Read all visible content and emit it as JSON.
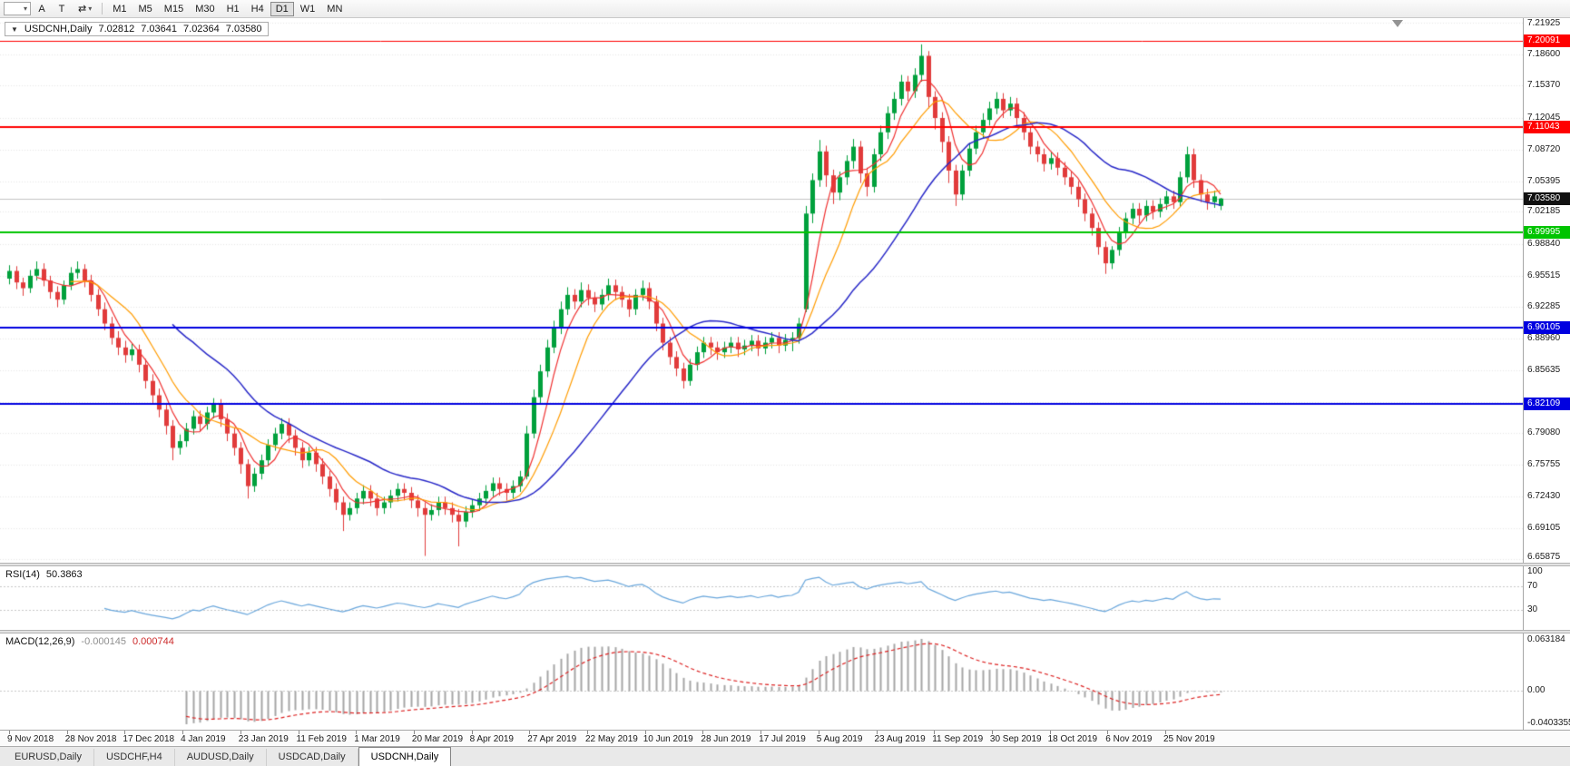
{
  "toolbar": {
    "icons": {
      "chart_selector": "▾",
      "arrows": "⇄",
      "arrows_caret": "▾"
    },
    "buttons": [
      {
        "label": "A"
      },
      {
        "label": "T"
      }
    ],
    "timeframes": [
      "M1",
      "M5",
      "M15",
      "M30",
      "H1",
      "H4",
      "D1",
      "W1",
      "MN"
    ],
    "active_timeframe": "D1"
  },
  "chart_header": {
    "collapse_icon": "▼",
    "symbol": "USDCNH,Daily",
    "open": "7.02812",
    "high": "7.03641",
    "low": "7.02364",
    "close": "7.03580"
  },
  "tabs": [
    {
      "label": "EURUSD,Daily",
      "active": false
    },
    {
      "label": "USDCHF,H4",
      "active": false
    },
    {
      "label": "AUDUSD,Daily",
      "active": false
    },
    {
      "label": "USDCAD,Daily",
      "active": false
    },
    {
      "label": "USDCNH,Daily",
      "active": true
    }
  ],
  "chart_data": {
    "type": "candlestick",
    "symbol": "USDCNH",
    "timeframe": "Daily",
    "ylim": [
      6.6549,
      7.2244
    ],
    "up_color": "#00a03c",
    "down_color": "#e13b3b",
    "grid_color": "#e7e7e7",
    "y_ticks": [
      7.21925,
      7.186,
      7.1537,
      7.12045,
      7.0872,
      7.05395,
      7.02185,
      6.9884,
      6.95515,
      6.92285,
      6.8896,
      6.85635,
      6.8231,
      6.7908,
      6.75755,
      6.7243,
      6.69105,
      6.65875
    ],
    "y_tick_labels": [
      "7.21925",
      "7.18600",
      "7.15370",
      "7.12045",
      "7.08720",
      "7.05395",
      "7.02185",
      "6.98840",
      "6.95515",
      "6.92285",
      "6.88960",
      "6.85635",
      "6.82310",
      "6.79080",
      "6.75755",
      "6.72430",
      "6.69105",
      "6.65875"
    ],
    "x_labels": [
      "9 Nov 2018",
      "28 Nov 2018",
      "17 Dec 2018",
      "4 Jan 2019",
      "23 Jan 2019",
      "11 Feb 2019",
      "1 Mar 2019",
      "20 Mar 2019",
      "8 Apr 2019",
      "27 Apr 2019",
      "22 May 2019",
      "10 Jun 2019",
      "28 Jun 2019",
      "17 Jul 2019",
      "5 Aug 2019",
      "23 Aug 2019",
      "11 Sep 2019",
      "30 Sep 2019",
      "18 Oct 2019",
      "6 Nov 2019",
      "25 Nov 2019"
    ],
    "hlines": [
      {
        "price": 7.20091,
        "label": "7.20091",
        "color": "#ff0000",
        "width": 1
      },
      {
        "price": 7.11043,
        "label": "7.11043",
        "color": "#ff0000",
        "width": 2
      },
      {
        "price": 6.99995,
        "label": "6.99995",
        "color": "#00c400",
        "width": 2
      },
      {
        "price": 6.90105,
        "label": "6.90105",
        "color": "#0000e0",
        "width": 2
      },
      {
        "price": 6.82109,
        "label": "6.82109",
        "color": "#0000e0",
        "width": 2
      }
    ],
    "current_price": {
      "price": 7.0358,
      "label": "7.03580",
      "color": "#111111"
    },
    "overlays": [
      {
        "name": "ma-fast",
        "type": "sma",
        "period": 5,
        "color": "#f03030",
        "width": 1.2
      },
      {
        "name": "ma-mid",
        "type": "sma",
        "period": 10,
        "color": "#ff9c00",
        "width": 1.2
      },
      {
        "name": "ma-slow",
        "type": "sma",
        "period": 25,
        "color": "#2828c8",
        "width": 1.5
      }
    ],
    "indicators": [
      {
        "name": "RSI",
        "label": "RSI(14)",
        "value": "50.3863",
        "period": 14,
        "color": "#6aa7dc",
        "levels": [
          70,
          30
        ],
        "axis_labels": [
          "100",
          "70",
          "30"
        ],
        "axis_values": [
          100,
          70,
          30
        ]
      },
      {
        "name": "MACD",
        "label": "MACD(12,26,9)",
        "values": [
          "-0.000145",
          "0.000744"
        ],
        "fast": 12,
        "slow": 26,
        "signal": 9,
        "hist_color": "#a6a6a6",
        "signal_color": "#dd2222",
        "axis_labels": [
          "0.063184",
          "0.00",
          "-0.0403355"
        ]
      }
    ],
    "candles": [
      [
        6.952,
        6.966,
        6.946,
        6.96
      ],
      [
        6.96,
        6.965,
        6.941,
        6.948
      ],
      [
        6.948,
        6.953,
        6.934,
        6.942
      ],
      [
        6.942,
        6.961,
        6.937,
        6.955
      ],
      [
        6.955,
        6.97,
        6.95,
        6.962
      ],
      [
        6.962,
        6.968,
        6.944,
        6.95
      ],
      [
        6.95,
        6.955,
        6.931,
        6.938
      ],
      [
        6.938,
        6.944,
        6.922,
        6.93
      ],
      [
        6.93,
        6.95,
        6.925,
        6.945
      ],
      [
        6.945,
        6.964,
        6.94,
        6.958
      ],
      [
        6.958,
        6.97,
        6.952,
        6.962
      ],
      [
        6.962,
        6.967,
        6.943,
        6.95
      ],
      [
        6.95,
        6.956,
        6.928,
        6.935
      ],
      [
        6.935,
        6.941,
        6.913,
        6.92
      ],
      [
        6.92,
        6.927,
        6.898,
        6.905
      ],
      [
        6.905,
        6.912,
        6.883,
        6.89
      ],
      [
        6.89,
        6.897,
        6.872,
        6.88
      ],
      [
        6.88,
        6.887,
        6.864,
        6.872
      ],
      [
        6.872,
        6.884,
        6.866,
        6.878
      ],
      [
        6.878,
        6.883,
        6.854,
        6.862
      ],
      [
        6.862,
        6.868,
        6.837,
        6.845
      ],
      [
        6.845,
        6.852,
        6.822,
        6.83
      ],
      [
        6.83,
        6.837,
        6.807,
        6.815
      ],
      [
        6.815,
        6.821,
        6.789,
        6.798
      ],
      [
        6.798,
        6.804,
        6.762,
        6.775
      ],
      [
        6.775,
        6.789,
        6.768,
        6.782
      ],
      [
        6.782,
        6.801,
        6.776,
        6.795
      ],
      [
        6.795,
        6.814,
        6.789,
        6.808
      ],
      [
        6.808,
        6.814,
        6.792,
        6.8
      ],
      [
        6.8,
        6.818,
        6.794,
        6.812
      ],
      [
        6.812,
        6.827,
        6.806,
        6.82
      ],
      [
        6.82,
        6.826,
        6.797,
        6.805
      ],
      [
        6.805,
        6.811,
        6.782,
        6.79
      ],
      [
        6.79,
        6.796,
        6.767,
        6.775
      ],
      [
        6.775,
        6.781,
        6.748,
        6.758
      ],
      [
        6.758,
        6.763,
        6.722,
        6.735
      ],
      [
        6.735,
        6.754,
        6.729,
        6.748
      ],
      [
        6.748,
        6.768,
        6.742,
        6.762
      ],
      [
        6.762,
        6.784,
        6.756,
        6.778
      ],
      [
        6.778,
        6.796,
        6.772,
        6.79
      ],
      [
        6.79,
        6.806,
        6.784,
        6.8
      ],
      [
        6.8,
        6.806,
        6.78,
        6.788
      ],
      [
        6.788,
        6.794,
        6.767,
        6.775
      ],
      [
        6.775,
        6.781,
        6.754,
        6.762
      ],
      [
        6.762,
        6.776,
        6.756,
        6.77
      ],
      [
        6.77,
        6.776,
        6.75,
        6.758
      ],
      [
        6.758,
        6.764,
        6.737,
        6.745
      ],
      [
        6.745,
        6.751,
        6.724,
        6.732
      ],
      [
        6.732,
        6.738,
        6.71,
        6.718
      ],
      [
        6.718,
        6.724,
        6.688,
        6.705
      ],
      [
        6.705,
        6.718,
        6.699,
        6.712
      ],
      [
        6.712,
        6.728,
        6.706,
        6.722
      ],
      [
        6.722,
        6.736,
        6.716,
        6.73
      ],
      [
        6.73,
        6.736,
        6.714,
        6.722
      ],
      [
        6.722,
        6.728,
        6.704,
        6.712
      ],
      [
        6.712,
        6.724,
        6.706,
        6.718
      ],
      [
        6.718,
        6.731,
        6.712,
        6.725
      ],
      [
        6.725,
        6.738,
        6.719,
        6.732
      ],
      [
        6.732,
        6.738,
        6.72,
        6.728
      ],
      [
        6.728,
        6.734,
        6.712,
        6.72
      ],
      [
        6.72,
        6.726,
        6.703,
        6.712
      ],
      [
        6.712,
        6.718,
        6.662,
        6.705
      ],
      [
        6.705,
        6.716,
        6.699,
        6.71
      ],
      [
        6.71,
        6.724,
        6.704,
        6.718
      ],
      [
        6.718,
        6.724,
        6.705,
        6.712
      ],
      [
        6.712,
        6.718,
        6.697,
        6.705
      ],
      [
        6.705,
        6.711,
        6.672,
        6.698
      ],
      [
        6.698,
        6.714,
        6.692,
        6.708
      ],
      [
        6.708,
        6.721,
        6.702,
        6.715
      ],
      [
        6.715,
        6.728,
        6.709,
        6.722
      ],
      [
        6.722,
        6.736,
        6.716,
        6.73
      ],
      [
        6.73,
        6.744,
        6.724,
        6.738
      ],
      [
        6.738,
        6.744,
        6.725,
        6.732
      ],
      [
        6.732,
        6.738,
        6.72,
        6.728
      ],
      [
        6.728,
        6.741,
        6.722,
        6.735
      ],
      [
        6.735,
        6.751,
        6.729,
        6.745
      ],
      [
        6.745,
        6.798,
        6.742,
        6.79
      ],
      [
        6.79,
        6.836,
        6.785,
        6.828
      ],
      [
        6.828,
        6.862,
        6.822,
        6.855
      ],
      [
        6.855,
        6.888,
        6.849,
        6.88
      ],
      [
        6.88,
        6.908,
        6.874,
        6.9
      ],
      [
        6.9,
        6.928,
        6.894,
        6.92
      ],
      [
        6.92,
        6.943,
        6.914,
        6.935
      ],
      [
        6.935,
        6.941,
        6.92,
        6.928
      ],
      [
        6.928,
        6.948,
        6.922,
        6.94
      ],
      [
        6.94,
        6.946,
        6.924,
        6.932
      ],
      [
        6.932,
        6.938,
        6.917,
        6.925
      ],
      [
        6.925,
        6.941,
        6.919,
        6.935
      ],
      [
        6.935,
        6.952,
        6.929,
        6.945
      ],
      [
        6.945,
        6.951,
        6.93,
        6.938
      ],
      [
        6.938,
        6.944,
        6.922,
        6.93
      ],
      [
        6.93,
        6.936,
        6.912,
        6.92
      ],
      [
        6.92,
        6.941,
        6.914,
        6.935
      ],
      [
        6.935,
        6.95,
        6.929,
        6.942
      ],
      [
        6.942,
        6.948,
        6.92,
        6.928
      ],
      [
        6.928,
        6.934,
        6.897,
        6.905
      ],
      [
        6.905,
        6.911,
        6.877,
        6.885
      ],
      [
        6.885,
        6.891,
        6.862,
        6.87
      ],
      [
        6.87,
        6.876,
        6.85,
        6.858
      ],
      [
        6.858,
        6.864,
        6.837,
        6.845
      ],
      [
        6.845,
        6.868,
        6.84,
        6.862
      ],
      [
        6.862,
        6.881,
        6.856,
        6.875
      ],
      [
        6.875,
        6.891,
        6.869,
        6.885
      ],
      [
        6.885,
        6.891,
        6.872,
        6.88
      ],
      [
        6.88,
        6.886,
        6.867,
        6.875
      ],
      [
        6.875,
        6.886,
        6.869,
        6.88
      ],
      [
        6.88,
        6.891,
        6.874,
        6.885
      ],
      [
        6.885,
        6.891,
        6.87,
        6.878
      ],
      [
        6.878,
        6.888,
        6.872,
        6.882
      ],
      [
        6.882,
        6.893,
        6.876,
        6.887
      ],
      [
        6.887,
        6.893,
        6.871,
        6.879
      ],
      [
        6.879,
        6.891,
        6.873,
        6.885
      ],
      [
        6.885,
        6.896,
        6.879,
        6.89
      ],
      [
        6.89,
        6.896,
        6.874,
        6.882
      ],
      [
        6.882,
        6.894,
        6.876,
        6.888
      ],
      [
        6.888,
        6.896,
        6.876,
        6.89
      ],
      [
        6.89,
        6.911,
        6.884,
        6.905
      ],
      [
        6.92,
        7.028,
        6.917,
        7.02
      ],
      [
        7.02,
        7.062,
        7.01,
        7.055
      ],
      [
        7.055,
        7.097,
        7.048,
        7.085
      ],
      [
        7.085,
        7.091,
        7.048,
        7.06
      ],
      [
        7.06,
        7.066,
        7.03,
        7.042
      ],
      [
        7.042,
        7.064,
        7.034,
        7.058
      ],
      [
        7.058,
        7.081,
        7.05,
        7.075
      ],
      [
        7.075,
        7.098,
        7.067,
        7.09
      ],
      [
        7.09,
        7.096,
        7.052,
        7.062
      ],
      [
        7.062,
        7.068,
        7.038,
        7.048
      ],
      [
        7.048,
        7.088,
        7.042,
        7.082
      ],
      [
        7.082,
        7.112,
        7.075,
        7.105
      ],
      [
        7.105,
        7.132,
        7.098,
        7.125
      ],
      [
        7.125,
        7.147,
        7.118,
        7.14
      ],
      [
        7.14,
        7.165,
        7.133,
        7.158
      ],
      [
        7.158,
        7.164,
        7.138,
        7.148
      ],
      [
        7.148,
        7.172,
        7.141,
        7.165
      ],
      [
        7.165,
        7.197,
        7.158,
        7.185
      ],
      [
        7.185,
        7.19,
        7.13,
        7.142
      ],
      [
        7.142,
        7.148,
        7.108,
        7.12
      ],
      [
        7.12,
        7.126,
        7.084,
        7.095
      ],
      [
        7.095,
        7.101,
        7.052,
        7.065
      ],
      [
        7.065,
        7.071,
        7.028,
        7.04
      ],
      [
        7.04,
        7.071,
        7.034,
        7.065
      ],
      [
        7.065,
        7.094,
        7.059,
        7.088
      ],
      [
        7.088,
        7.112,
        7.082,
        7.105
      ],
      [
        7.105,
        7.125,
        7.099,
        7.118
      ],
      [
        7.118,
        7.137,
        7.112,
        7.13
      ],
      [
        7.13,
        7.147,
        7.124,
        7.14
      ],
      [
        7.14,
        7.146,
        7.12,
        7.128
      ],
      [
        7.128,
        7.142,
        7.122,
        7.135
      ],
      [
        7.135,
        7.141,
        7.112,
        7.12
      ],
      [
        7.12,
        7.126,
        7.097,
        7.105
      ],
      [
        7.105,
        7.111,
        7.082,
        7.09
      ],
      [
        7.09,
        7.096,
        7.074,
        7.082
      ],
      [
        7.082,
        7.088,
        7.064,
        7.072
      ],
      [
        7.072,
        7.085,
        7.066,
        7.078
      ],
      [
        7.078,
        7.084,
        7.06,
        7.068
      ],
      [
        7.068,
        7.074,
        7.05,
        7.058
      ],
      [
        7.058,
        7.064,
        7.04,
        7.048
      ],
      [
        7.048,
        7.054,
        7.027,
        7.035
      ],
      [
        7.035,
        7.041,
        7.012,
        7.02
      ],
      [
        7.02,
        7.026,
        6.997,
        7.005
      ],
      [
        7.005,
        7.011,
        6.977,
        6.985
      ],
      [
        6.985,
        6.991,
        6.957,
        6.968
      ],
      [
        6.968,
        6.986,
        6.962,
        6.982
      ],
      [
        6.982,
        7.006,
        6.976,
        7.0
      ],
      [
        7.0,
        7.021,
        6.994,
        7.015
      ],
      [
        7.015,
        7.031,
        7.009,
        7.025
      ],
      [
        7.025,
        7.031,
        7.01,
        7.018
      ],
      [
        7.018,
        7.034,
        7.012,
        7.028
      ],
      [
        7.028,
        7.034,
        7.014,
        7.022
      ],
      [
        7.022,
        7.036,
        7.016,
        7.03
      ],
      [
        7.03,
        7.044,
        7.024,
        7.038
      ],
      [
        7.038,
        7.044,
        7.025,
        7.032
      ],
      [
        7.032,
        7.064,
        7.027,
        7.058
      ],
      [
        7.058,
        7.09,
        7.052,
        7.082
      ],
      [
        7.082,
        7.088,
        7.047,
        7.055
      ],
      [
        7.055,
        7.061,
        7.032,
        7.04
      ],
      [
        7.04,
        7.046,
        7.024,
        7.032
      ],
      [
        7.032,
        7.044,
        7.026,
        7.038
      ],
      [
        7.0281,
        7.0364,
        7.0236,
        7.0358
      ]
    ]
  }
}
